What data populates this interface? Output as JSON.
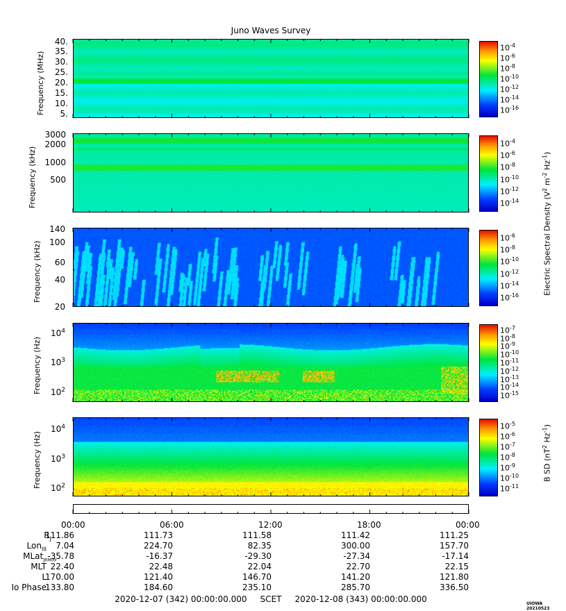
{
  "title": "Juno Waves Survey",
  "chart_data": [
    {
      "type": "heatmap",
      "ylabel": "Frequency (MHz)",
      "yticks": [
        "40.",
        "35.",
        "30.",
        "25.",
        "20.",
        "15.",
        "10.",
        "5."
      ],
      "colorbar": {
        "exponents": [
          "-4",
          "-6",
          "-8",
          "-10",
          "-12",
          "-14",
          "-16"
        ]
      },
      "bands": [
        {
          "freq": 21,
          "note": "bright band"
        }
      ]
    },
    {
      "type": "heatmap",
      "ylabel": "Frequency (kHz)",
      "yticks": [
        "3000",
        "2000",
        "1000",
        "500"
      ],
      "colorbar": {
        "exponents": [
          "-4",
          "-6",
          "-8",
          "-10",
          "-12",
          "-14"
        ]
      },
      "bands": [
        {
          "freq": 2200
        },
        {
          "freq": 800
        }
      ]
    },
    {
      "type": "heatmap",
      "ylabel": "Frequency (kHz)",
      "yticks": [
        "140",
        "100",
        "60",
        "40",
        "20"
      ],
      "colorbar": {
        "exponents": [
          "-6",
          "-8",
          "-10",
          "-12",
          "-14",
          "-16"
        ]
      }
    },
    {
      "type": "heatmap",
      "ylabel": "Frequency (Hz)",
      "yticks": [
        {
          "base": "10",
          "exp": "4"
        },
        {
          "base": "10",
          "exp": "3"
        },
        {
          "base": "10",
          "exp": "2"
        }
      ],
      "colorbar": {
        "exponents": [
          "-7",
          "-8",
          "-9",
          "-10",
          "-11",
          "-12",
          "-13",
          "-14",
          "-15"
        ]
      }
    },
    {
      "type": "heatmap",
      "ylabel": "Frequency (Hz)",
      "yticks": [
        {
          "base": "10",
          "exp": "4"
        },
        {
          "base": "10",
          "exp": "3"
        },
        {
          "base": "10",
          "exp": "2"
        }
      ],
      "colorbar": {
        "exponents": [
          "-5",
          "-6",
          "-7",
          "-8",
          "-9",
          "-10",
          "-11"
        ]
      }
    }
  ],
  "colorbar_titles": {
    "electric": {
      "text": "Electric Spectral Density (V",
      "sup1": "2",
      "mid": " m",
      "sup2": "-2",
      "mid2": " Hz",
      "sup3": "-1",
      "end": ")"
    },
    "magnetic": {
      "text": "B SD (nT",
      "sup1": "2",
      "mid": " Hz",
      "sup2": "-1",
      "end": ")"
    }
  },
  "time_ticks": [
    "00:00",
    "06:00",
    "12:00",
    "18:00",
    "00:00"
  ],
  "ephemeris": {
    "labels": [
      {
        "text": "R",
        "sub": "J"
      },
      {
        "text": "Lon",
        "sub": "III"
      },
      {
        "text": "MLat",
        "sub": "JRM09"
      },
      {
        "text": "MLT",
        "sub": ""
      },
      {
        "text": "L",
        "sub": ""
      },
      {
        "text": "Io Phase",
        "sub": ""
      }
    ],
    "rows": [
      [
        "111.86",
        "111.73",
        "111.58",
        "111.42",
        "111.25"
      ],
      [
        "7.04",
        "224.70",
        "82.35",
        "300.00",
        "157.70"
      ],
      [
        "-35.78",
        "-16.37",
        "-29.30",
        "-27.34",
        "-17.14"
      ],
      [
        "22.40",
        "22.48",
        "22.04",
        "22.70",
        "22.15"
      ],
      [
        "170.00",
        "121.40",
        "146.70",
        "141.20",
        "121.80"
      ],
      [
        "133.80",
        "184.60",
        "235.10",
        "285.70",
        "336.50"
      ]
    ]
  },
  "footer": "2020-12-07 (342) 00:00:00.000     SCET     2020-12-08 (343) 00:00:00.000",
  "stamp": "UIOWA 20210523",
  "colors": {
    "background": "#ffffff"
  }
}
